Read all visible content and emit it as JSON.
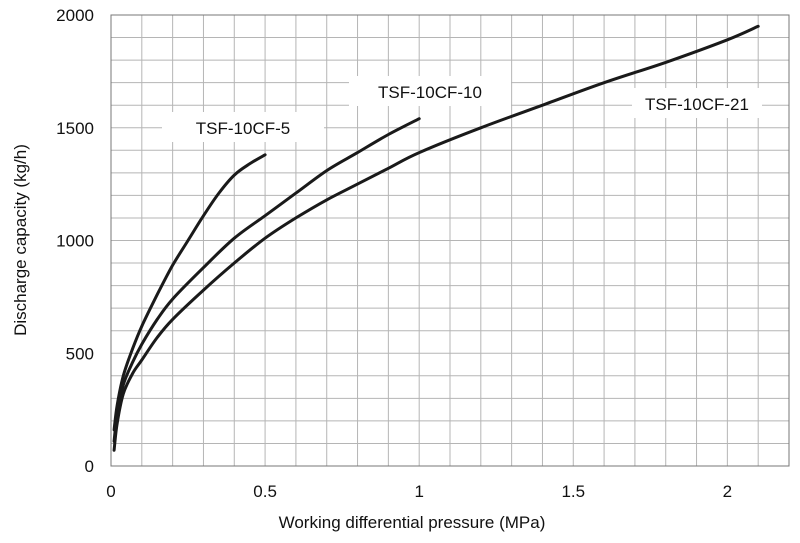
{
  "chart_data": {
    "type": "line",
    "title": "",
    "xlabel": "Working differential pressure (MPa)",
    "ylabel": "Discharge capacity (kg/h)",
    "xlim": [
      0,
      2.2
    ],
    "ylim": [
      0,
      2000
    ],
    "x_ticks": [
      0,
      0.5,
      1,
      1.5,
      2
    ],
    "x_tick_labels": [
      "0",
      "0.5",
      "1",
      "1.5",
      "2"
    ],
    "y_ticks": [
      0,
      500,
      1000,
      1500,
      2000
    ],
    "y_tick_labels": [
      "0",
      "500",
      "1000",
      "1500",
      "2000"
    ],
    "x_minor_step": 0.1,
    "y_minor_step": 100,
    "grid": true,
    "series": [
      {
        "name": "TSF-10CF-5",
        "x": [
          0.01,
          0.02,
          0.04,
          0.07,
          0.1,
          0.15,
          0.2,
          0.25,
          0.3,
          0.35,
          0.4,
          0.45,
          0.5
        ],
        "y": [
          160,
          270,
          400,
          520,
          620,
          760,
          890,
          1000,
          1110,
          1210,
          1290,
          1340,
          1380
        ]
      },
      {
        "name": "TSF-10CF-10",
        "x": [
          0.01,
          0.02,
          0.04,
          0.07,
          0.1,
          0.15,
          0.2,
          0.3,
          0.4,
          0.5,
          0.6,
          0.7,
          0.8,
          0.9,
          1.0
        ],
        "y": [
          110,
          230,
          360,
          460,
          540,
          650,
          740,
          880,
          1010,
          1110,
          1210,
          1310,
          1390,
          1470,
          1540
        ]
      },
      {
        "name": "TSF-10CF-21",
        "x": [
          0.01,
          0.02,
          0.04,
          0.07,
          0.1,
          0.15,
          0.2,
          0.3,
          0.4,
          0.5,
          0.6,
          0.7,
          0.8,
          0.9,
          1.0,
          1.2,
          1.4,
          1.6,
          1.8,
          2.0,
          2.1
        ],
        "y": [
          70,
          190,
          320,
          410,
          470,
          570,
          650,
          780,
          900,
          1010,
          1100,
          1180,
          1250,
          1320,
          1390,
          1500,
          1600,
          1700,
          1790,
          1890,
          1950
        ]
      }
    ],
    "annotations": [
      "TSF-10CF-5",
      "TSF-10CF-10",
      "TSF-10CF-21"
    ]
  }
}
